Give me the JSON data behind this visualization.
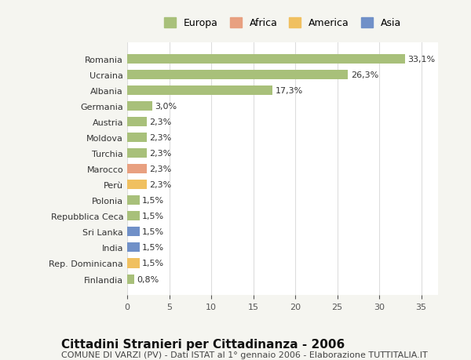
{
  "categories": [
    "Romania",
    "Ucraina",
    "Albania",
    "Germania",
    "Austria",
    "Moldova",
    "Turchia",
    "Marocco",
    "Perù",
    "Polonia",
    "Repubblica Ceca",
    "Sri Lanka",
    "India",
    "Rep. Dominicana",
    "Finlandia"
  ],
  "values": [
    33.1,
    26.3,
    17.3,
    3.0,
    2.3,
    2.3,
    2.3,
    2.3,
    2.3,
    1.5,
    1.5,
    1.5,
    1.5,
    1.5,
    0.8
  ],
  "labels": [
    "33,1%",
    "26,3%",
    "17,3%",
    "3,0%",
    "2,3%",
    "2,3%",
    "2,3%",
    "2,3%",
    "2,3%",
    "1,5%",
    "1,5%",
    "1,5%",
    "1,5%",
    "1,5%",
    "0,8%"
  ],
  "colors": [
    "#a8c07a",
    "#a8c07a",
    "#a8c07a",
    "#a8c07a",
    "#a8c07a",
    "#a8c07a",
    "#a8c07a",
    "#e8a080",
    "#f0c060",
    "#a8c07a",
    "#a8c07a",
    "#7090c8",
    "#7090c8",
    "#f0c060",
    "#a8c07a"
  ],
  "legend_labels": [
    "Europa",
    "Africa",
    "America",
    "Asia"
  ],
  "legend_colors": [
    "#a8c07a",
    "#e8a080",
    "#f0c060",
    "#7090c8"
  ],
  "xlim": [
    0,
    37
  ],
  "xticks": [
    0,
    5,
    10,
    15,
    20,
    25,
    30,
    35
  ],
  "title": "Cittadini Stranieri per Cittadinanza - 2006",
  "subtitle": "COMUNE DI VARZI (PV) - Dati ISTAT al 1° gennaio 2006 - Elaborazione TUTTITALIA.IT",
  "background_color": "#f5f5f0",
  "plot_background": "#ffffff",
  "grid_color": "#dddddd",
  "bar_height": 0.6,
  "title_fontsize": 11,
  "subtitle_fontsize": 8,
  "tick_fontsize": 8,
  "label_fontsize": 8,
  "legend_fontsize": 9
}
